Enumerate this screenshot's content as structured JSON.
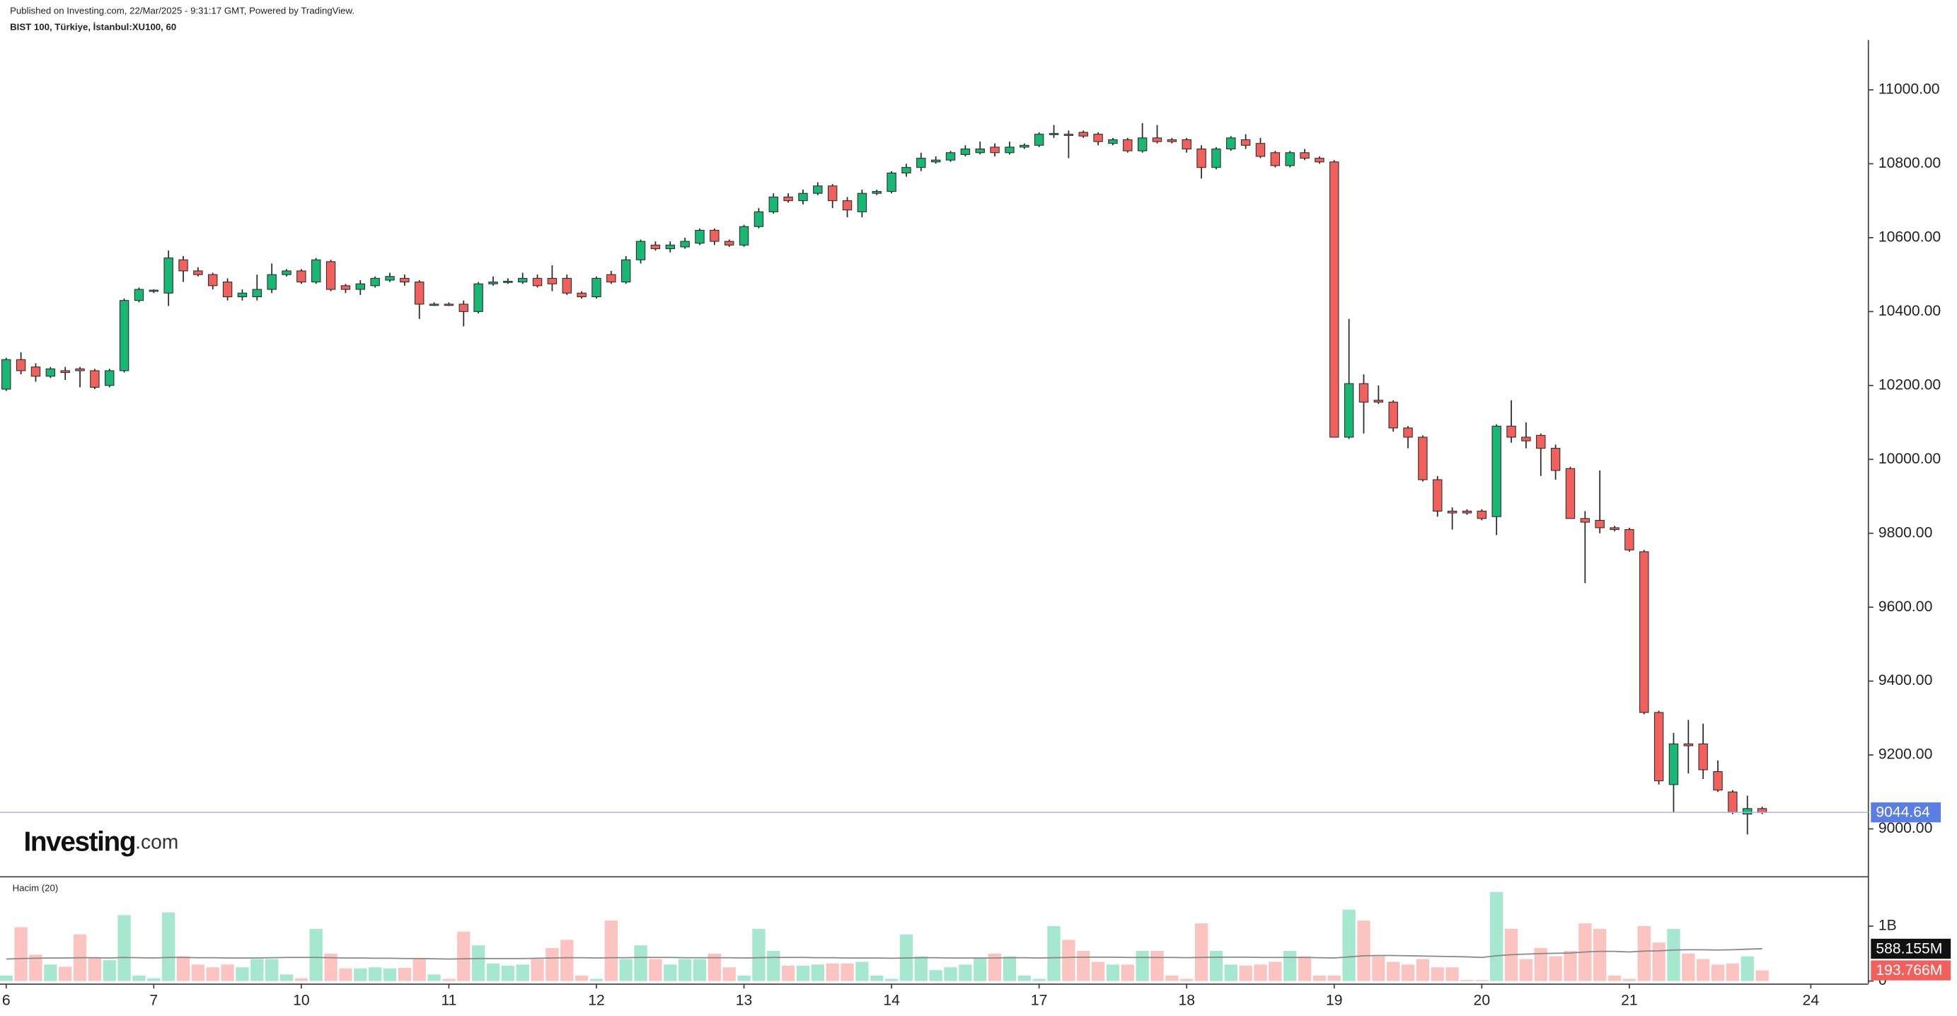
{
  "chart_data": {
    "type": "candlestick",
    "published": "Published on Investing.com, 22/Mar/2025 - 9:31:17 GMT, Powered by TradingView.",
    "title": "BIST 100, Türkiye, İstanbul:XU100, 60",
    "logo": {
      "name": "Investing",
      "suffix": ".com"
    },
    "up_color": "#16b873",
    "down_color": "#f2605b",
    "open": [
      10190,
      10270,
      10250,
      10225,
      10240,
      10245,
      10240,
      10200,
      10240,
      10430,
      10455,
      10450,
      10540,
      10510,
      10500,
      10480,
      10440,
      10440,
      10460,
      10500,
      10510,
      10480,
      10535,
      10470,
      10460,
      10470,
      10485,
      10490,
      10480,
      10420,
      10420,
      10420,
      10400,
      10475,
      10480,
      10480,
      10490,
      10490,
      10490,
      10450,
      10440,
      10500,
      10480,
      10540,
      10580,
      10570,
      10575,
      10585,
      10620,
      10590,
      10580,
      10630,
      10670,
      10710,
      10700,
      10720,
      10740,
      10700,
      10670,
      10720,
      10725,
      10775,
      10790,
      10805,
      10810,
      10825,
      10830,
      10845,
      10830,
      10845,
      10850,
      10880,
      10880,
      10885,
      10880,
      10855,
      10865,
      10835,
      10870,
      10865,
      10865,
      10840,
      10790,
      10840,
      10865,
      10855,
      10830,
      10795,
      10830,
      10815,
      10805,
      10060,
      10205,
      10160,
      10155,
      10085,
      10060,
      9945,
      9860,
      9860,
      9860,
      9845,
      10090,
      10060,
      10065,
      10030,
      9975,
      9840,
      9835,
      9815,
      9810,
      9750,
      9315,
      9120,
      9230,
      9230,
      9155,
      9100,
      9040,
      9055
    ],
    "high": [
      10275,
      10290,
      10260,
      10250,
      10250,
      10250,
      10245,
      10245,
      10435,
      10465,
      10460,
      10565,
      10550,
      10520,
      10505,
      10490,
      10460,
      10500,
      10530,
      10515,
      10515,
      10545,
      10540,
      10475,
      10485,
      10495,
      10505,
      10500,
      10485,
      10425,
      10425,
      10430,
      10480,
      10495,
      10490,
      10505,
      10500,
      10525,
      10500,
      10455,
      10495,
      10510,
      10550,
      10595,
      10590,
      10590,
      10600,
      10625,
      10625,
      10595,
      10635,
      10680,
      10720,
      10720,
      10730,
      10750,
      10745,
      10710,
      10730,
      10730,
      10780,
      10800,
      10830,
      10820,
      10835,
      10850,
      10860,
      10855,
      10860,
      10855,
      10885,
      10905,
      10890,
      10890,
      10885,
      10870,
      10870,
      10910,
      10905,
      10870,
      10870,
      10850,
      10845,
      10875,
      10880,
      10870,
      10835,
      10835,
      10840,
      10820,
      10810,
      10380,
      10230,
      10200,
      10160,
      10090,
      10065,
      9955,
      9870,
      9865,
      9865,
      10095,
      10160,
      10100,
      10070,
      10040,
      9980,
      9860,
      9970,
      9820,
      9815,
      9755,
      9320,
      9260,
      9295,
      9285,
      9185,
      9105,
      9090,
      9060
    ],
    "low": [
      10185,
      10230,
      10210,
      10220,
      10215,
      10195,
      10190,
      10195,
      10235,
      10425,
      10450,
      10415,
      10480,
      10495,
      10460,
      10430,
      10430,
      10430,
      10450,
      10495,
      10475,
      10475,
      10455,
      10450,
      10445,
      10465,
      10480,
      10470,
      10380,
      10415,
      10415,
      10360,
      10395,
      10470,
      10475,
      10475,
      10465,
      10455,
      10445,
      10435,
      10435,
      10475,
      10475,
      10530,
      10565,
      10560,
      10570,
      10580,
      10580,
      10575,
      10575,
      10625,
      10665,
      10695,
      10690,
      10715,
      10680,
      10655,
      10655,
      10715,
      10720,
      10765,
      10780,
      10800,
      10805,
      10820,
      10825,
      10820,
      10825,
      10840,
      10845,
      10870,
      10815,
      10870,
      10850,
      10850,
      10830,
      10830,
      10855,
      10855,
      10830,
      10760,
      10785,
      10835,
      10840,
      10815,
      10790,
      10790,
      10810,
      10800,
      10060,
      10055,
      10070,
      10150,
      10075,
      10030,
      9940,
      9845,
      9810,
      9850,
      9835,
      9795,
      10045,
      10030,
      9955,
      9945,
      9840,
      9665,
      9800,
      9805,
      9750,
      9310,
      9120,
      9045,
      9150,
      9135,
      9100,
      9040,
      8985,
      9040
    ],
    "close": [
      10270,
      10240,
      10225,
      10245,
      10235,
      10240,
      10195,
      10240,
      10430,
      10460,
      10458,
      10545,
      10510,
      10500,
      10470,
      10440,
      10450,
      10460,
      10500,
      10510,
      10480,
      10540,
      10460,
      10460,
      10475,
      10490,
      10495,
      10480,
      10420,
      10420,
      10418,
      10400,
      10475,
      10480,
      10482,
      10490,
      10470,
      10475,
      10450,
      10440,
      10490,
      10480,
      10540,
      10590,
      10570,
      10580,
      10590,
      10620,
      10590,
      10580,
      10630,
      10670,
      10710,
      10700,
      10720,
      10740,
      10700,
      10675,
      10720,
      10725,
      10775,
      10790,
      10815,
      10810,
      10830,
      10840,
      10840,
      10830,
      10845,
      10850,
      10880,
      10882,
      10878,
      10875,
      10860,
      10865,
      10835,
      10870,
      10860,
      10860,
      10840,
      10790,
      10840,
      10870,
      10850,
      10820,
      10795,
      10830,
      10815,
      10805,
      10060,
      10205,
      10155,
      10155,
      10085,
      10060,
      9945,
      9860,
      9855,
      9855,
      9840,
      10090,
      10060,
      10050,
      10030,
      9970,
      9840,
      9830,
      9815,
      9810,
      9755,
      9315,
      9130,
      9230,
      9225,
      9160,
      9105,
      9045,
      9055,
      9044.64
    ],
    "last_price": 9044.64,
    "xlim": [
      -0.42,
      126.2
    ],
    "xticks": [
      {
        "value": 0,
        "label": "6"
      },
      {
        "value": 10,
        "label": "7"
      },
      {
        "value": 20,
        "label": "10"
      },
      {
        "value": 30,
        "label": "11"
      },
      {
        "value": 40,
        "label": "12"
      },
      {
        "value": 50,
        "label": "13"
      },
      {
        "value": 60,
        "label": "14"
      },
      {
        "value": 70,
        "label": "17"
      },
      {
        "value": 80,
        "label": "18"
      },
      {
        "value": 90,
        "label": "19"
      },
      {
        "value": 100,
        "label": "20"
      },
      {
        "value": 110,
        "label": "21"
      },
      {
        "value": 122.3,
        "label": "24"
      }
    ],
    "ylim": [
      8872,
      11135
    ],
    "yticks": [
      {
        "value": 9000,
        "label": "9000.00"
      },
      {
        "value": 9200,
        "label": "9200.00"
      },
      {
        "value": 9400,
        "label": "9400.00"
      },
      {
        "value": 9600,
        "label": "9600.00"
      },
      {
        "value": 9800,
        "label": "9800.00"
      },
      {
        "value": 10000,
        "label": "10000.00"
      },
      {
        "value": 10200,
        "label": "10200.00"
      },
      {
        "value": 10400,
        "label": "10400.00"
      },
      {
        "value": 10600,
        "label": "10600.00"
      },
      {
        "value": 10800,
        "label": "10800.00"
      },
      {
        "value": 11000,
        "label": "11000.00"
      }
    ],
    "volume": {
      "title": "Hacim (20)",
      "up_color": "#a6e8cf",
      "down_color": "#fcc4c1",
      "values": [
        100,
        980,
        480,
        300,
        260,
        850,
        420,
        380,
        1200,
        100,
        50,
        1250,
        450,
        300,
        250,
        300,
        250,
        400,
        400,
        120,
        50,
        950,
        500,
        230,
        230,
        250,
        230,
        240,
        400,
        120,
        40,
        900,
        650,
        320,
        280,
        300,
        400,
        600,
        750,
        100,
        40,
        1100,
        400,
        650,
        400,
        300,
        400,
        400,
        500,
        250,
        100,
        950,
        550,
        280,
        280,
        300,
        320,
        320,
        350,
        100,
        40,
        850,
        450,
        200,
        250,
        300,
        420,
        500,
        450,
        100,
        40,
        1000,
        750,
        550,
        350,
        300,
        300,
        550,
        550,
        100,
        40,
        1050,
        550,
        300,
        280,
        300,
        350,
        550,
        450,
        100,
        100,
        1300,
        1100,
        450,
        350,
        300,
        400,
        250,
        250,
        20,
        20,
        1620,
        950,
        400,
        600,
        450,
        550,
        1050,
        950,
        100,
        40,
        1000,
        700,
        950,
        500,
        400,
        300,
        320,
        450,
        193.766
      ],
      "value_labels": {
        "119": "193.766M"
      },
      "ma": {
        "color": "#888888",
        "values": [
          400,
          410,
          415,
          420,
          420,
          425,
          425,
          420,
          430,
          425,
          420,
          430,
          430,
          425,
          425,
          420,
          420,
          420,
          425,
          430,
          430,
          430,
          425,
          420,
          420,
          415,
          415,
          410,
          410,
          405,
          400,
          405,
          410,
          410,
          410,
          410,
          415,
          420,
          425,
          425,
          420,
          425,
          425,
          430,
          430,
          430,
          425,
          425,
          425,
          425,
          420,
          425,
          430,
          430,
          430,
          425,
          425,
          420,
          420,
          420,
          415,
          420,
          425,
          425,
          420,
          420,
          420,
          420,
          425,
          425,
          420,
          425,
          430,
          435,
          435,
          435,
          430,
          430,
          430,
          430,
          425,
          430,
          435,
          435,
          435,
          430,
          430,
          430,
          430,
          425,
          420,
          440,
          460,
          465,
          465,
          460,
          455,
          450,
          445,
          440,
          430,
          460,
          480,
          490,
          500,
          505,
          510,
          530,
          540,
          540,
          530,
          545,
          550,
          565,
          570,
          570,
          565,
          570,
          580,
          588.155
        ],
        "last_label": "588.155M"
      },
      "y2lim": [
        -45,
        1886
      ],
      "y2ticks": [
        {
          "value": 1000,
          "label": "1B"
        },
        0
      ]
    }
  }
}
